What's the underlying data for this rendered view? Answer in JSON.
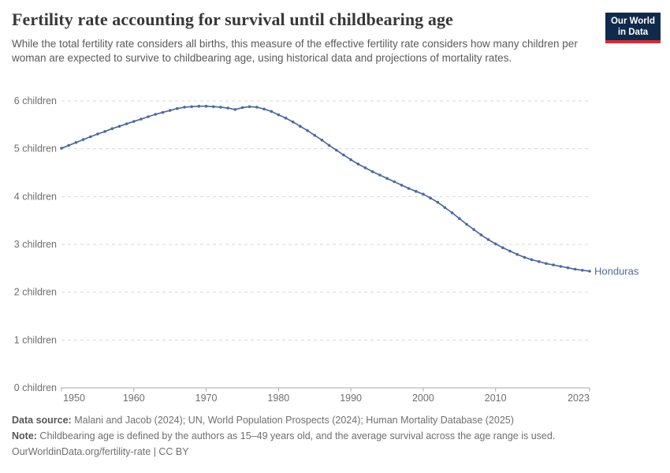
{
  "header": {
    "title": "Fertility rate accounting for survival until childbearing age",
    "subtitle": "While the total fertility rate considers all births, this measure of the effective fertility rate considers how many children per woman are expected to survive to childbearing age, using historical data and projections of mortality rates."
  },
  "logo": {
    "line1": "Our World",
    "line2": "in Data",
    "bg_color": "#102a4c",
    "accent_color": "#cf3038"
  },
  "chart_data": {
    "type": "line",
    "title": "Fertility rate accounting for survival until childbearing age",
    "xlabel": "",
    "ylabel": "",
    "xlim": [
      1950,
      2023
    ],
    "ylim": [
      0,
      6
    ],
    "grid": "horizontal-dashed",
    "legend_position": "end-of-line-label",
    "x_ticks": [
      1950,
      1960,
      1970,
      1980,
      1990,
      2000,
      2010,
      2023
    ],
    "y_ticks": [
      {
        "value": 0,
        "label": "0 children"
      },
      {
        "value": 1,
        "label": "1 children"
      },
      {
        "value": 2,
        "label": "2 children"
      },
      {
        "value": 3,
        "label": "3 children"
      },
      {
        "value": 4,
        "label": "4 children"
      },
      {
        "value": 5,
        "label": "5 children"
      },
      {
        "value": 6,
        "label": "6 children"
      }
    ],
    "series": [
      {
        "name": "Honduras",
        "color": "#4c6a9c",
        "x": [
          1950,
          1951,
          1952,
          1953,
          1954,
          1955,
          1956,
          1957,
          1958,
          1959,
          1960,
          1961,
          1962,
          1963,
          1964,
          1965,
          1966,
          1967,
          1968,
          1969,
          1970,
          1971,
          1972,
          1973,
          1974,
          1975,
          1976,
          1977,
          1978,
          1979,
          1980,
          1981,
          1982,
          1983,
          1984,
          1985,
          1986,
          1987,
          1988,
          1989,
          1990,
          1991,
          1992,
          1993,
          1994,
          1995,
          1996,
          1997,
          1998,
          1999,
          2000,
          2001,
          2002,
          2003,
          2004,
          2005,
          2006,
          2007,
          2008,
          2009,
          2010,
          2011,
          2012,
          2013,
          2014,
          2015,
          2016,
          2017,
          2018,
          2019,
          2020,
          2021,
          2022,
          2023
        ],
        "values": [
          5.01,
          5.07,
          5.13,
          5.19,
          5.25,
          5.31,
          5.36,
          5.42,
          5.47,
          5.52,
          5.57,
          5.62,
          5.67,
          5.72,
          5.76,
          5.8,
          5.84,
          5.87,
          5.88,
          5.89,
          5.89,
          5.88,
          5.87,
          5.85,
          5.82,
          5.86,
          5.88,
          5.87,
          5.83,
          5.78,
          5.71,
          5.64,
          5.56,
          5.47,
          5.38,
          5.28,
          5.18,
          5.07,
          4.97,
          4.87,
          4.77,
          4.68,
          4.6,
          4.52,
          4.45,
          4.38,
          4.31,
          4.24,
          4.17,
          4.11,
          4.05,
          3.97,
          3.88,
          3.77,
          3.66,
          3.54,
          3.42,
          3.31,
          3.2,
          3.1,
          3.01,
          2.93,
          2.86,
          2.79,
          2.73,
          2.68,
          2.64,
          2.6,
          2.57,
          2.54,
          2.51,
          2.48,
          2.46,
          2.44
        ]
      }
    ],
    "colors": {
      "line": "#4c6a9c",
      "gridline": "#d7d7d7",
      "axis": "#a8a8a8",
      "tick_label": "#6e6e6e"
    }
  },
  "footer": {
    "data_source_label": "Data source:",
    "data_source": " Malani and Jacob (2024); UN, World Population Prospects (2024); Human Mortality Database (2025)",
    "note_label": "Note:",
    "note": " Childbearing age is defined by the authors as 15–49 years old, and the average survival across the age range is used.",
    "link": "OurWorldinData.org/fertility-rate | CC BY"
  }
}
